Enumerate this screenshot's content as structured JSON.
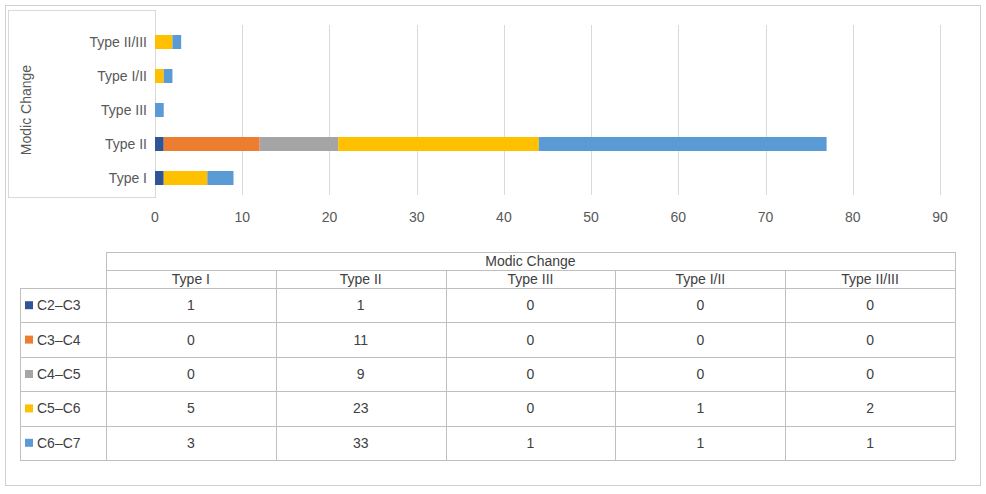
{
  "chart_data": {
    "type": "bar",
    "orientation": "horizontal",
    "stacked": true,
    "grid": true,
    "y_label": "Modic Change",
    "categories": [
      "Type I",
      "Type II",
      "Type III",
      "Type I/II",
      "Type II/III"
    ],
    "series": [
      {
        "name": "C2–C3",
        "color": "#2f5597",
        "values": [
          1,
          1,
          0,
          0,
          0
        ]
      },
      {
        "name": "C3–C4",
        "color": "#ed7d31",
        "values": [
          0,
          11,
          0,
          0,
          0
        ]
      },
      {
        "name": "C4–C5",
        "color": "#a5a5a5",
        "values": [
          0,
          9,
          0,
          0,
          0
        ]
      },
      {
        "name": "C5–C6",
        "color": "#ffc000",
        "values": [
          5,
          23,
          0,
          1,
          2
        ]
      },
      {
        "name": "C6–C7",
        "color": "#5b9bd5",
        "values": [
          3,
          33,
          1,
          1,
          1
        ]
      }
    ],
    "xlim": [
      0,
      90
    ],
    "xticks": [
      0,
      10,
      20,
      30,
      40,
      50,
      60,
      70,
      80,
      90
    ]
  }
}
